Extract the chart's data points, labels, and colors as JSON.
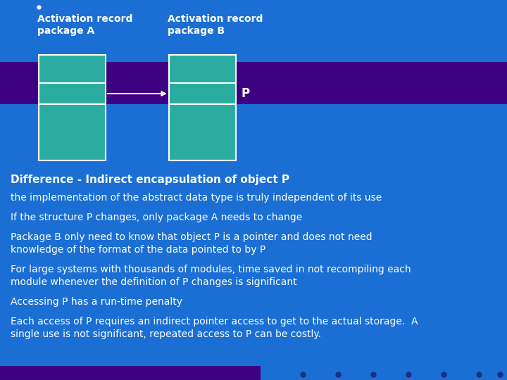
{
  "bg_color": "#1B6FD4",
  "purple_band_color": "#3D0080",
  "teal_color": "#2AADA0",
  "white_color": "#FFFFFF",
  "label_A": "Activation record\npackage A",
  "label_B": "Activation record\npackage B",
  "label_P": "P",
  "diff_title": "Difference - Indirect encapsulation of object P",
  "bullets": [
    "the implementation of the abstract data type is truly independent of its use",
    "If the structure P changes, only package A needs to change",
    "Package B only need to know that object P is a pointer and does not need\nknowledge of the format of the data pointed to by P",
    "For large systems with thousands of modules, time saved in not recompiling each\nmodule whenever the definition of P changes is significant",
    "Accessing P has a run-time penalty",
    "Each access of P requires an indirect pointer access to get to the actual storage.  A\nsingle use is not significant, repeated access to P can be costly."
  ],
  "bottom_purple_bar_width": 370,
  "bottom_dots": [
    430,
    480,
    530,
    580,
    630,
    680,
    710
  ],
  "bottom_dot_color": "#1B3080"
}
